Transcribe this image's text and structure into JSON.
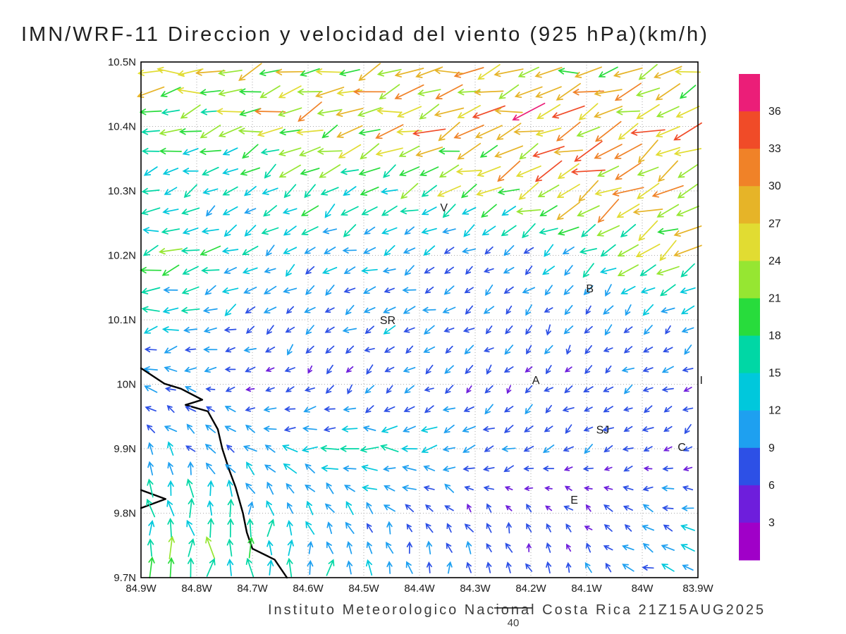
{
  "chart_data": {
    "type": "quiver",
    "title": "IMN/WRF-11 Direccion y velocidad del viento (925 hPa)(km/h)",
    "footer": "Instituto Meteorologico Nacional Costa Rica 21Z15AUG2025",
    "units": "km/h",
    "pressure_level": "925 hPa",
    "model": "IMN/WRF-11",
    "valid_time": "21Z15AUG2025",
    "grid_on": true,
    "extent": {
      "lon": [
        -84.9,
        -83.9
      ],
      "lat": [
        9.7,
        10.5
      ]
    },
    "x_ticks": [
      "84.9W",
      "84.8W",
      "84.7W",
      "84.6W",
      "84.5W",
      "84.4W",
      "84.3W",
      "84.2W",
      "84.1W",
      "84W",
      "83.9W"
    ],
    "y_ticks": [
      "10.5N",
      "10.4N",
      "10.3N",
      "10.2N",
      "10.1N",
      "10N",
      "9.9N",
      "9.8N",
      "9.7N"
    ],
    "colorbar": {
      "position": "right",
      "levels": [
        3,
        6,
        9,
        12,
        15,
        18,
        21,
        24,
        27,
        30,
        33,
        36
      ],
      "colors": [
        "#a000c8",
        "#6e1edc",
        "#2d50e6",
        "#1ea0f0",
        "#00c8dc",
        "#00d7a5",
        "#28dc3c",
        "#96e632",
        "#e1dc32",
        "#e6b428",
        "#f08228",
        "#f04b28",
        "#eb1e78"
      ]
    },
    "reference_vector": {
      "value": 40,
      "label": "40"
    },
    "cities": [
      {
        "label": "V",
        "lon": -84.356,
        "lat": 10.274
      },
      {
        "label": "B",
        "lon": -84.094,
        "lat": 10.148
      },
      {
        "label": "SR",
        "lon": -84.457,
        "lat": 10.099
      },
      {
        "label": "A",
        "lon": -84.191,
        "lat": 10.006
      },
      {
        "label": "SJ",
        "lon": -84.071,
        "lat": 9.929
      },
      {
        "label": "C",
        "lon": -83.929,
        "lat": 9.902
      },
      {
        "label": "E",
        "lon": -84.122,
        "lat": 9.82
      },
      {
        "label": "I",
        "lon": -83.894,
        "lat": 10.006
      }
    ],
    "coastline": {
      "segments": [
        [
          [
            -84.9,
            10.025
          ],
          [
            -84.858,
            10.001
          ],
          [
            -84.828,
            9.993
          ],
          [
            -84.79,
            9.976
          ],
          [
            -84.82,
            9.968
          ],
          [
            -84.78,
            9.958
          ],
          [
            -84.762,
            9.93
          ],
          [
            -84.754,
            9.9
          ],
          [
            -84.742,
            9.868
          ],
          [
            -84.73,
            9.84
          ],
          [
            -84.717,
            9.8
          ],
          [
            -84.71,
            9.77
          ],
          [
            -84.7,
            9.745
          ],
          [
            -84.66,
            9.728
          ],
          [
            -84.638,
            9.7
          ]
        ],
        [
          [
            -84.9,
            9.836
          ],
          [
            -84.856,
            9.822
          ],
          [
            -84.9,
            9.808
          ]
        ]
      ]
    },
    "grid": {
      "lons": [
        -84.9,
        -84.8,
        -84.7,
        -84.6,
        -84.5,
        -84.4,
        -84.3,
        -84.2,
        -84.1,
        -84.0,
        -83.9
      ],
      "lats": [
        10.5,
        10.4,
        10.3,
        10.2,
        10.1,
        10.0,
        9.9,
        9.8,
        9.7
      ],
      "uv": [
        [
          [
            -26,
            -3
          ],
          [
            -25,
            -4
          ],
          [
            -23,
            -5
          ],
          [
            -25,
            -6
          ],
          [
            -24,
            -6
          ],
          [
            -25,
            -7
          ],
          [
            -26,
            -7
          ],
          [
            -25,
            -6
          ],
          [
            -24,
            -7
          ],
          [
            -23,
            -8
          ],
          [
            -22,
            -8
          ]
        ],
        [
          [
            -18,
            -2
          ],
          [
            -20,
            -4
          ],
          [
            -23,
            -5
          ],
          [
            -24,
            -7
          ],
          [
            -25,
            -8
          ],
          [
            -26,
            -9
          ],
          [
            -27,
            -11
          ],
          [
            -28,
            -12
          ],
          [
            -27,
            -13
          ],
          [
            -25,
            -13
          ],
          [
            -23,
            -12
          ]
        ],
        [
          [
            -13,
            -3
          ],
          [
            -12,
            -6
          ],
          [
            -10,
            -8
          ],
          [
            -15,
            -10
          ],
          [
            -14,
            -8
          ],
          [
            -16,
            -8
          ],
          [
            -18,
            -10
          ],
          [
            -22,
            -12
          ],
          [
            -26,
            -14
          ],
          [
            -25,
            -13
          ],
          [
            -22,
            -11
          ]
        ],
        [
          [
            -19,
            -3
          ],
          [
            -17,
            -5
          ],
          [
            -12,
            -6
          ],
          [
            -9,
            -6
          ],
          [
            -11,
            -4
          ],
          [
            -8,
            -5
          ],
          [
            -6,
            -5
          ],
          [
            -8,
            -6
          ],
          [
            -11,
            -8
          ],
          [
            -20,
            -12
          ],
          [
            -23,
            -10
          ]
        ],
        [
          [
            -14,
            -2
          ],
          [
            -12,
            -3
          ],
          [
            -8,
            -5
          ],
          [
            -6,
            -6
          ],
          [
            -9,
            -4
          ],
          [
            -10,
            -4
          ],
          [
            -7,
            -5
          ],
          [
            -5,
            -7
          ],
          [
            -4,
            -7
          ],
          [
            -6,
            -6
          ],
          [
            -8,
            -5
          ]
        ],
        [
          [
            -10,
            2
          ],
          [
            -8,
            1
          ],
          [
            -6,
            -2
          ],
          [
            -5,
            -5
          ],
          [
            -4,
            -6
          ],
          [
            -6,
            -5
          ],
          [
            -5,
            -6
          ],
          [
            -4,
            -5
          ],
          [
            -6,
            -4
          ],
          [
            -8,
            -3
          ],
          [
            -7,
            -3
          ]
        ],
        [
          [
            -4,
            10
          ],
          [
            -6,
            8
          ],
          [
            -10,
            5
          ],
          [
            -14,
            2
          ],
          [
            -16,
            0
          ],
          [
            -14,
            -2
          ],
          [
            -10,
            -4
          ],
          [
            -8,
            -5
          ],
          [
            -7,
            -4
          ],
          [
            -6,
            -3
          ],
          [
            -5,
            -4
          ]
        ],
        [
          [
            -2,
            16
          ],
          [
            -1,
            17
          ],
          [
            0,
            15
          ],
          [
            -4,
            10
          ],
          [
            -7,
            8
          ],
          [
            -5,
            6
          ],
          [
            -4,
            6
          ],
          [
            -3,
            5
          ],
          [
            -4,
            4
          ],
          [
            -8,
            4
          ],
          [
            -10,
            3
          ]
        ],
        [
          [
            0,
            18
          ],
          [
            1,
            19
          ],
          [
            0,
            18
          ],
          [
            1,
            14
          ],
          [
            0,
            12
          ],
          [
            -1,
            10
          ],
          [
            -2,
            10
          ],
          [
            -2,
            8
          ],
          [
            -3,
            7
          ],
          [
            -9,
            5
          ],
          [
            -12,
            4
          ]
        ]
      ]
    }
  }
}
